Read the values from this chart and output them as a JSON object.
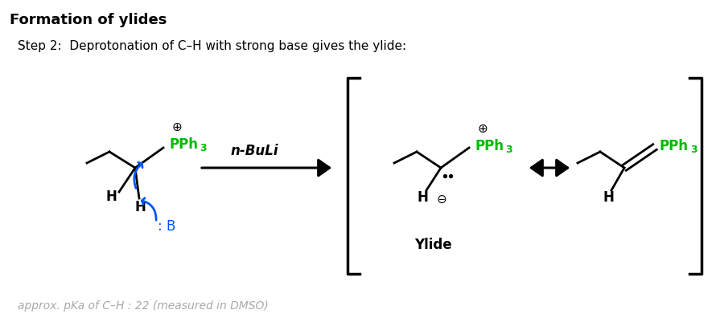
{
  "title": "Formation of ylides",
  "step_text": "Step 2:  Deprotonation of C–H with strong base gives the ylide:",
  "reagent": "n-BuLi",
  "ylide_label": "Ylide",
  "footnote": "approx. pKa of C–H : 22 (measured in DMSO)",
  "pph3_color": "#00bb00",
  "arrow_color": "#0055ff",
  "black": "#000000",
  "gray": "#aaaaaa",
  "bg": "#ffffff"
}
